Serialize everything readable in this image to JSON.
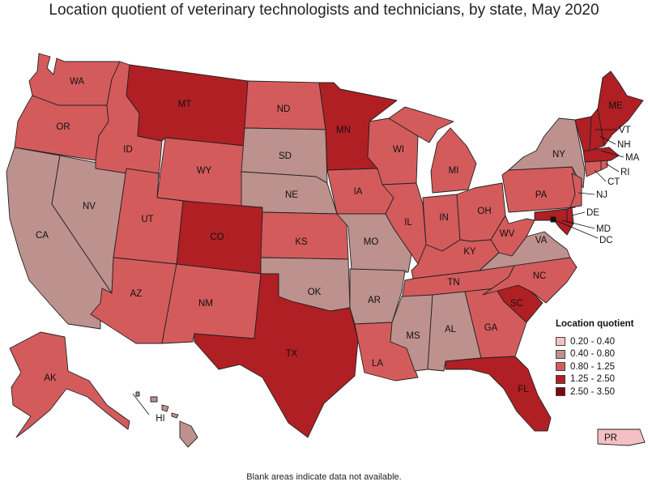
{
  "title": "Location quotient of veterinary technologists and technicians, by state, May 2020",
  "footnote": "Blank areas indicate data not available.",
  "legend": {
    "title": "Location quotient",
    "items": [
      {
        "label": "0.20 - 0.40",
        "color": "#f4c0c4"
      },
      {
        "label": "0.40 - 0.80",
        "color": "#bd918e"
      },
      {
        "label": "0.80 - 1.25",
        "color": "#d45b5c"
      },
      {
        "label": "1.25 - 2.50",
        "color": "#b01f24"
      },
      {
        "label": "2.50 - 3.50",
        "color": "#7d0510"
      }
    ]
  },
  "chart_data": {
    "type": "choropleth",
    "title": "Location quotient of veterinary technologists and technicians, by state, May 2020",
    "classes": [
      "0.20 - 0.40",
      "0.40 - 0.80",
      "0.80 - 1.25",
      "1.25 - 2.50",
      "2.50 - 3.50"
    ],
    "states": {
      "WA": "0.80 - 1.25",
      "OR": "0.80 - 1.25",
      "CA": "0.40 - 0.80",
      "NV": "0.40 - 0.80",
      "ID": "0.80 - 1.25",
      "MT": "1.25 - 2.50",
      "WY": "0.80 - 1.25",
      "UT": "0.80 - 1.25",
      "AZ": "0.80 - 1.25",
      "CO": "1.25 - 2.50",
      "NM": "0.80 - 1.25",
      "ND": "0.80 - 1.25",
      "SD": "0.40 - 0.80",
      "NE": "0.40 - 0.80",
      "KS": "0.80 - 1.25",
      "OK": "0.40 - 0.80",
      "TX": "1.25 - 2.50",
      "MN": "1.25 - 2.50",
      "IA": "0.80 - 1.25",
      "MO": "0.40 - 0.80",
      "AR": "0.40 - 0.80",
      "LA": "0.80 - 1.25",
      "WI": "0.80 - 1.25",
      "IL": "0.80 - 1.25",
      "MI": "0.80 - 1.25",
      "IN": "0.80 - 1.25",
      "OH": "0.80 - 1.25",
      "KY": "0.80 - 1.25",
      "TN": "0.80 - 1.25",
      "MS": "0.40 - 0.80",
      "AL": "0.40 - 0.80",
      "GA": "0.80 - 1.25",
      "FL": "1.25 - 2.50",
      "SC": "1.25 - 2.50",
      "NC": "0.80 - 1.25",
      "VA": "0.40 - 0.80",
      "WV": "0.80 - 1.25",
      "PA": "0.80 - 1.25",
      "NY": "0.40 - 0.80",
      "VT": "1.25 - 2.50",
      "NH": "1.25 - 2.50",
      "ME": "1.25 - 2.50",
      "MA": "1.25 - 2.50",
      "RI": "0.80 - 1.25",
      "CT": "0.80 - 1.25",
      "NJ": "0.80 - 1.25",
      "DE": "1.25 - 2.50",
      "MD": "1.25 - 2.50",
      "DC": "2.50 - 3.50",
      "AK": "0.80 - 1.25",
      "HI": "0.40 - 0.80",
      "PR": "0.20 - 0.40"
    }
  }
}
